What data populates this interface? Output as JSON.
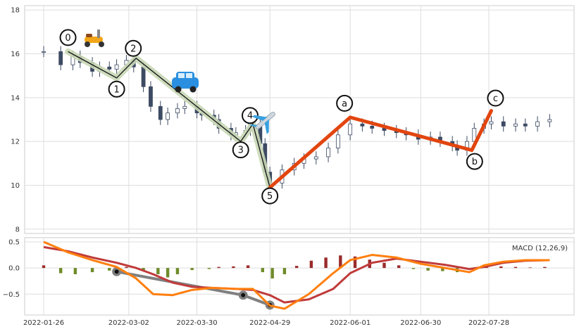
{
  "chart_data": [
    {
      "type": "candlestick",
      "title": "",
      "xlabel": "",
      "ylabel": "",
      "ylim": [
        7.8,
        18.2
      ],
      "yticks": [
        8,
        10,
        12,
        14,
        16,
        18
      ],
      "xticks": [
        "2022-01-26",
        "2022-03-02",
        "2022-03-30",
        "2022-04-29",
        "2022-06-01",
        "2022-06-30",
        "2022-07-28"
      ],
      "grid": true,
      "colors": {
        "up": "#ffffff",
        "down": "#3d4a63",
        "wave_fill": "#c9d8b6",
        "wave_line": "#1a1a1a",
        "abc_line": "#e2450f"
      },
      "close_points": [
        [
          "2022-01-26",
          16.1
        ],
        [
          "2022-02-02",
          15.5
        ],
        [
          "2022-02-07",
          15.9
        ],
        [
          "2022-02-10",
          15.6
        ],
        [
          "2022-02-15",
          15.2
        ],
        [
          "2022-02-18",
          15.4
        ],
        [
          "2022-02-22",
          15.3
        ],
        [
          "2022-02-25",
          15.5
        ],
        [
          "2022-03-01",
          15.7
        ],
        [
          "2022-03-04",
          15.4
        ],
        [
          "2022-03-08",
          14.5
        ],
        [
          "2022-03-11",
          13.6
        ],
        [
          "2022-03-15",
          13.0
        ],
        [
          "2022-03-18",
          13.3
        ],
        [
          "2022-03-22",
          13.5
        ],
        [
          "2022-03-25",
          13.6
        ],
        [
          "2022-03-30",
          13.3
        ],
        [
          "2022-04-01",
          13.2
        ],
        [
          "2022-04-06",
          13.0
        ],
        [
          "2022-04-08",
          12.6
        ],
        [
          "2022-04-13",
          12.3
        ],
        [
          "2022-04-15",
          12.4
        ],
        [
          "2022-04-19",
          12.5
        ],
        [
          "2022-04-21",
          12.8
        ],
        [
          "2022-04-25",
          11.9
        ],
        [
          "2022-04-27",
          10.6
        ],
        [
          "2022-04-29",
          10.1
        ],
        [
          "2022-05-04",
          10.7
        ],
        [
          "2022-05-09",
          11.0
        ],
        [
          "2022-05-13",
          11.2
        ],
        [
          "2022-05-18",
          11.3
        ],
        [
          "2022-05-23",
          11.7
        ],
        [
          "2022-05-27",
          12.3
        ],
        [
          "2022-06-01",
          12.8
        ],
        [
          "2022-06-06",
          12.7
        ],
        [
          "2022-06-10",
          12.6
        ],
        [
          "2022-06-15",
          12.5
        ],
        [
          "2022-06-20",
          12.4
        ],
        [
          "2022-06-24",
          12.3
        ],
        [
          "2022-06-29",
          12.1
        ],
        [
          "2022-07-04",
          12.2
        ],
        [
          "2022-07-08",
          12.0
        ],
        [
          "2022-07-13",
          11.8
        ],
        [
          "2022-07-15",
          11.6
        ],
        [
          "2022-07-19",
          12.0
        ],
        [
          "2022-07-22",
          12.6
        ],
        [
          "2022-07-26",
          12.8
        ],
        [
          "2022-07-29",
          12.9
        ],
        [
          "2022-08-03",
          12.7
        ],
        [
          "2022-08-08",
          12.8
        ],
        [
          "2022-08-12",
          12.7
        ],
        [
          "2022-08-17",
          12.9
        ],
        [
          "2022-08-22",
          13.0
        ]
      ],
      "elliott_wave": {
        "labels": [
          "0",
          "1",
          "2",
          "3",
          "4",
          "5"
        ],
        "points": [
          [
            "2022-02-05",
            16.1
          ],
          [
            "2022-02-25",
            14.9
          ],
          [
            "2022-03-05",
            15.8
          ],
          [
            "2022-04-17",
            12.0
          ],
          [
            "2022-04-22",
            12.8
          ],
          [
            "2022-04-29",
            9.9
          ]
        ]
      },
      "correction_wave": {
        "labels": [
          "a",
          "b",
          "c"
        ],
        "points": [
          [
            "2022-06-01",
            13.1
          ],
          [
            "2022-07-21",
            11.6
          ],
          [
            "2022-07-29",
            13.4
          ]
        ]
      },
      "icons": [
        "scooter-icon",
        "car-icon",
        "airplane-icon"
      ]
    },
    {
      "type": "macd",
      "legend_label": "MACD (12,26,9)",
      "legend_position": "top-right",
      "ylim": [
        -0.9,
        0.58
      ],
      "yticks": [
        0.5,
        0.0,
        -0.5
      ],
      "ytick_labels": [
        "0.5",
        "0.0",
        "−0.5"
      ],
      "colors": {
        "macd": "#ff7f0e",
        "signal": "#c03a3a",
        "hist_pos": "#9b2b2b",
        "hist_neg": "#6f8b2a",
        "trend": "#808080"
      },
      "macd_points": [
        [
          "2022-01-26",
          0.5
        ],
        [
          "2022-02-05",
          0.3
        ],
        [
          "2022-02-15",
          0.15
        ],
        [
          "2022-02-25",
          0.02
        ],
        [
          "2022-03-05",
          -0.2
        ],
        [
          "2022-03-12",
          -0.5
        ],
        [
          "2022-03-20",
          -0.52
        ],
        [
          "2022-03-28",
          -0.42
        ],
        [
          "2022-04-05",
          -0.38
        ],
        [
          "2022-04-15",
          -0.4
        ],
        [
          "2022-04-22",
          -0.4
        ],
        [
          "2022-04-29",
          -0.72
        ],
        [
          "2022-05-05",
          -0.78
        ],
        [
          "2022-05-15",
          -0.5
        ],
        [
          "2022-05-25",
          -0.1
        ],
        [
          "2022-06-01",
          0.15
        ],
        [
          "2022-06-10",
          0.25
        ],
        [
          "2022-06-20",
          0.2
        ],
        [
          "2022-06-30",
          0.08
        ],
        [
          "2022-07-10",
          0.0
        ],
        [
          "2022-07-20",
          -0.08
        ],
        [
          "2022-07-26",
          0.05
        ],
        [
          "2022-08-03",
          0.12
        ],
        [
          "2022-08-12",
          0.15
        ],
        [
          "2022-08-22",
          0.15
        ]
      ],
      "signal_points": [
        [
          "2022-01-26",
          0.4
        ],
        [
          "2022-02-05",
          0.32
        ],
        [
          "2022-02-15",
          0.2
        ],
        [
          "2022-02-25",
          0.1
        ],
        [
          "2022-03-05",
          0.0
        ],
        [
          "2022-03-12",
          -0.12
        ],
        [
          "2022-03-20",
          -0.28
        ],
        [
          "2022-03-28",
          -0.36
        ],
        [
          "2022-04-05",
          -0.38
        ],
        [
          "2022-04-15",
          -0.4
        ],
        [
          "2022-04-22",
          -0.42
        ],
        [
          "2022-04-29",
          -0.52
        ],
        [
          "2022-05-05",
          -0.66
        ],
        [
          "2022-05-15",
          -0.6
        ],
        [
          "2022-05-25",
          -0.4
        ],
        [
          "2022-06-01",
          -0.1
        ],
        [
          "2022-06-10",
          0.1
        ],
        [
          "2022-06-20",
          0.18
        ],
        [
          "2022-06-30",
          0.12
        ],
        [
          "2022-07-10",
          0.06
        ],
        [
          "2022-07-20",
          -0.02
        ],
        [
          "2022-07-26",
          0.02
        ],
        [
          "2022-08-03",
          0.1
        ],
        [
          "2022-08-12",
          0.14
        ],
        [
          "2022-08-22",
          0.15
        ]
      ],
      "histogram": [
        [
          "2022-01-26",
          0.05
        ],
        [
          "2022-02-02",
          -0.1
        ],
        [
          "2022-02-08",
          -0.12
        ],
        [
          "2022-02-15",
          -0.08
        ],
        [
          "2022-02-22",
          -0.05
        ],
        [
          "2022-03-01",
          0.02
        ],
        [
          "2022-03-08",
          -0.05
        ],
        [
          "2022-03-14",
          -0.12
        ],
        [
          "2022-03-18",
          -0.18
        ],
        [
          "2022-03-22",
          -0.12
        ],
        [
          "2022-03-28",
          -0.04
        ],
        [
          "2022-04-04",
          -0.02
        ],
        [
          "2022-04-08",
          0.02
        ],
        [
          "2022-04-14",
          0.03
        ],
        [
          "2022-04-20",
          0.05
        ],
        [
          "2022-04-26",
          -0.08
        ],
        [
          "2022-04-30",
          -0.2
        ],
        [
          "2022-05-05",
          -0.12
        ],
        [
          "2022-05-10",
          0.04
        ],
        [
          "2022-05-16",
          0.14
        ],
        [
          "2022-05-22",
          0.2
        ],
        [
          "2022-05-28",
          0.24
        ],
        [
          "2022-06-03",
          0.22
        ],
        [
          "2022-06-09",
          0.16
        ],
        [
          "2022-06-15",
          0.1
        ],
        [
          "2022-06-21",
          0.05
        ],
        [
          "2022-06-27",
          -0.02
        ],
        [
          "2022-07-03",
          -0.05
        ],
        [
          "2022-07-09",
          -0.06
        ],
        [
          "2022-07-15",
          -0.08
        ],
        [
          "2022-07-21",
          -0.03
        ],
        [
          "2022-07-27",
          0.05
        ],
        [
          "2022-08-02",
          0.03
        ],
        [
          "2022-08-08",
          0.02
        ],
        [
          "2022-08-14",
          0.01
        ],
        [
          "2022-08-20",
          0.02
        ]
      ],
      "trendline_points": [
        [
          "2022-02-25",
          -0.07
        ],
        [
          "2022-04-18",
          -0.52
        ],
        [
          "2022-04-29",
          -0.71
        ]
      ]
    }
  ]
}
